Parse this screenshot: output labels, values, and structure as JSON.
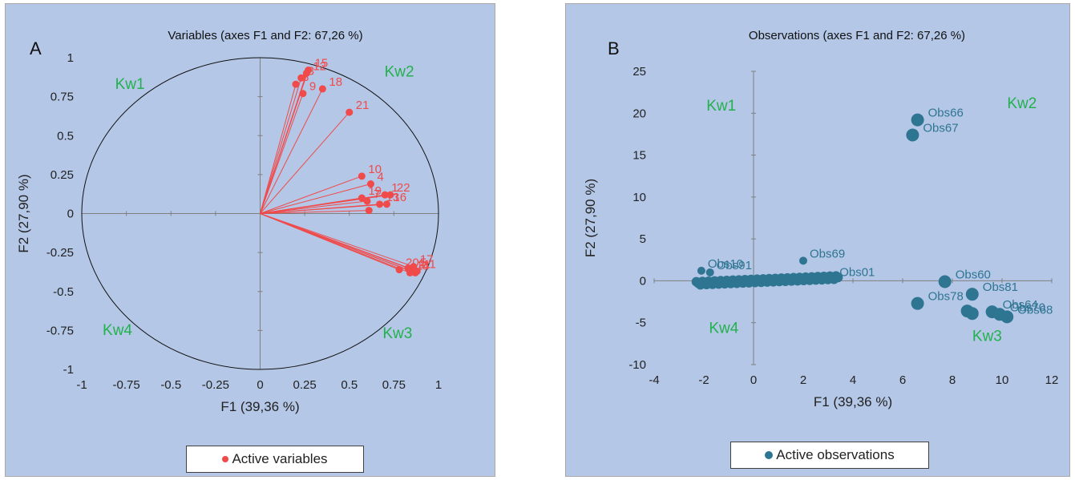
{
  "colors": {
    "variables": "#f04a4a",
    "observations": "#2e7592",
    "quadrant_label": "#22b14c",
    "panel_bg": "#b4c7e7",
    "axis": "#7f7f7f"
  },
  "chart_data": [
    {
      "type": "scatter",
      "panel_letter": "A",
      "title": "Variables (axes F1 and F2: 67,26 %)",
      "xlabel": "F1 (39,36 %)",
      "ylabel": "F2 (27,90 %)",
      "xlim": [
        -1,
        1
      ],
      "ylim": [
        -1,
        1
      ],
      "xticks": [
        "-1",
        "-0.75",
        "-0.5",
        "-0.25",
        "0",
        "0.25",
        "0.5",
        "0.75",
        "1"
      ],
      "yticks": [
        "1",
        "0.75",
        "0.5",
        "0.25",
        "0",
        "-0.25",
        "-0.5",
        "-0.75",
        "-1"
      ],
      "legend": "Active variables",
      "unit_circle": true,
      "vectors_from_origin": true,
      "quadrants": [
        {
          "label": "Kw1",
          "x": -0.73,
          "y": 0.8
        },
        {
          "label": "Kw2",
          "x": 0.78,
          "y": 0.88
        },
        {
          "label": "Kw3",
          "x": 0.77,
          "y": -0.8
        },
        {
          "label": "Kw4",
          "x": -0.8,
          "y": -0.78
        }
      ],
      "points": [
        {
          "x": 0.27,
          "y": 0.92,
          "label": "15"
        },
        {
          "x": 0.26,
          "y": 0.9,
          "label": "12"
        },
        {
          "x": 0.23,
          "y": 0.87,
          "label": "3"
        },
        {
          "x": 0.2,
          "y": 0.83,
          "label": "8"
        },
        {
          "x": 0.24,
          "y": 0.77,
          "label": "9"
        },
        {
          "x": 0.35,
          "y": 0.8,
          "label": "18"
        },
        {
          "x": 0.5,
          "y": 0.65,
          "label": "21"
        },
        {
          "x": 0.57,
          "y": 0.24,
          "label": "10"
        },
        {
          "x": 0.62,
          "y": 0.19,
          "label": "4"
        },
        {
          "x": 0.7,
          "y": 0.12,
          "label": "1"
        },
        {
          "x": 0.73,
          "y": 0.12,
          "label": "22"
        },
        {
          "x": 0.57,
          "y": 0.1,
          "label": "19"
        },
        {
          "x": 0.6,
          "y": 0.08,
          "label": "7"
        },
        {
          "x": 0.67,
          "y": 0.06,
          "label": "13"
        },
        {
          "x": 0.71,
          "y": 0.06,
          "label": "16"
        },
        {
          "x": 0.61,
          "y": 0.02,
          "label": ""
        },
        {
          "x": 0.78,
          "y": -0.36,
          "label": "20"
        },
        {
          "x": 0.83,
          "y": -0.35,
          "label": ""
        },
        {
          "x": 0.85,
          "y": -0.37,
          "label": "2"
        },
        {
          "x": 0.86,
          "y": -0.36,
          "label": "5"
        },
        {
          "x": 0.87,
          "y": -0.38,
          "label": "6"
        },
        {
          "x": 0.88,
          "y": -0.37,
          "label": "11"
        },
        {
          "x": 0.84,
          "y": -0.38,
          "label": "14"
        },
        {
          "x": 0.86,
          "y": -0.34,
          "label": "17"
        }
      ]
    },
    {
      "type": "scatter",
      "panel_letter": "B",
      "title": "Observations (axes F1 and F2: 67,26 %)",
      "xlabel": "F1 (39,36 %)",
      "ylabel": "F2 (27,90 %)",
      "xlim": [
        -4,
        12
      ],
      "ylim": [
        -10,
        25
      ],
      "xticks": [
        "-4",
        "-2",
        "0",
        "2",
        "4",
        "6",
        "8",
        "10",
        "12"
      ],
      "yticks": [
        "25",
        "20",
        "15",
        "10",
        "5",
        "0",
        "-5",
        "-10"
      ],
      "legend": "Active observations",
      "quadrants": [
        {
          "label": "Kw1",
          "x": -1.3,
          "y": 20.3
        },
        {
          "label": "Kw2",
          "x": 10.8,
          "y": 20.6
        },
        {
          "label": "Kw3",
          "x": 9.4,
          "y": -7.2
        },
        {
          "label": "Kw4",
          "x": -1.2,
          "y": -6.2
        }
      ],
      "points": [
        {
          "x": 6.6,
          "y": 19.2,
          "label": "Obs66",
          "big": true
        },
        {
          "x": 6.4,
          "y": 17.4,
          "label": "Obs67",
          "big": true
        },
        {
          "x": 2.0,
          "y": 2.4,
          "label": "Obs69"
        },
        {
          "x": -2.1,
          "y": 1.2,
          "label": "Obs10"
        },
        {
          "x": -1.75,
          "y": 1.0,
          "label": "Obs91"
        },
        {
          "x": 3.2,
          "y": 0.2,
          "label": "Obs01"
        },
        {
          "x": 7.7,
          "y": -0.1,
          "label": "Obs60",
          "big": true
        },
        {
          "x": 8.8,
          "y": -1.6,
          "label": "Obs81",
          "big": true
        },
        {
          "x": 6.6,
          "y": -2.7,
          "label": "Obs78",
          "big": true
        },
        {
          "x": 8.6,
          "y": -3.6,
          "label": "",
          "big": true
        },
        {
          "x": 8.8,
          "y": -3.9,
          "label": "",
          "big": true
        },
        {
          "x": 9.6,
          "y": -3.7,
          "label": "Obs64",
          "big": true
        },
        {
          "x": 9.9,
          "y": -4.0,
          "label": "Obs70",
          "big": true
        },
        {
          "x": 10.2,
          "y": -4.3,
          "label": "Obs68",
          "big": true
        }
      ],
      "cluster": {
        "x_from": -2.3,
        "x_to": 3.4,
        "y_from": -0.3,
        "y_to": 0.4
      }
    }
  ]
}
